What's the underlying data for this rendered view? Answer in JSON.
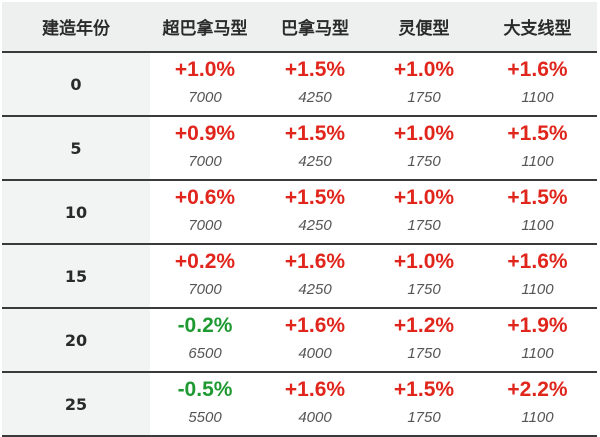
{
  "table": {
    "headers": [
      "建造年份",
      "超巴拿马型",
      "巴拿马型",
      "灵便型",
      "大支线型"
    ],
    "rows": [
      {
        "year": "0",
        "cells": [
          {
            "change": "+1.0%",
            "size": "7000",
            "trend": "up"
          },
          {
            "change": "+1.5%",
            "size": "4250",
            "trend": "up"
          },
          {
            "change": "+1.0%",
            "size": "1750",
            "trend": "up"
          },
          {
            "change": "+1.6%",
            "size": "1100",
            "trend": "up"
          }
        ]
      },
      {
        "year": "5",
        "cells": [
          {
            "change": "+0.9%",
            "size": "7000",
            "trend": "up"
          },
          {
            "change": "+1.5%",
            "size": "4250",
            "trend": "up"
          },
          {
            "change": "+1.0%",
            "size": "1750",
            "trend": "up"
          },
          {
            "change": "+1.5%",
            "size": "1100",
            "trend": "up"
          }
        ]
      },
      {
        "year": "10",
        "cells": [
          {
            "change": "+0.6%",
            "size": "7000",
            "trend": "up"
          },
          {
            "change": "+1.5%",
            "size": "4250",
            "trend": "up"
          },
          {
            "change": "+1.0%",
            "size": "1750",
            "trend": "up"
          },
          {
            "change": "+1.5%",
            "size": "1100",
            "trend": "up"
          }
        ]
      },
      {
        "year": "15",
        "cells": [
          {
            "change": "+0.2%",
            "size": "7000",
            "trend": "up"
          },
          {
            "change": "+1.6%",
            "size": "4250",
            "trend": "up"
          },
          {
            "change": "+1.0%",
            "size": "1750",
            "trend": "up"
          },
          {
            "change": "+1.6%",
            "size": "1100",
            "trend": "up"
          }
        ]
      },
      {
        "year": "20",
        "cells": [
          {
            "change": "-0.2%",
            "size": "6500",
            "trend": "down"
          },
          {
            "change": "+1.6%",
            "size": "4000",
            "trend": "up"
          },
          {
            "change": "+1.2%",
            "size": "1750",
            "trend": "up"
          },
          {
            "change": "+1.9%",
            "size": "1100",
            "trend": "up"
          }
        ]
      },
      {
        "year": "25",
        "cells": [
          {
            "change": "-0.5%",
            "size": "5500",
            "trend": "down"
          },
          {
            "change": "+1.6%",
            "size": "4000",
            "trend": "up"
          },
          {
            "change": "+1.5%",
            "size": "1750",
            "trend": "up"
          },
          {
            "change": "+2.2%",
            "size": "1100",
            "trend": "up"
          }
        ]
      }
    ]
  },
  "colors": {
    "positive": "#e0261c",
    "negative": "#1f9a32",
    "header_bg": "#eef0f0",
    "year_bg": "#f2f4f4",
    "rule": "#3a3a3a"
  }
}
